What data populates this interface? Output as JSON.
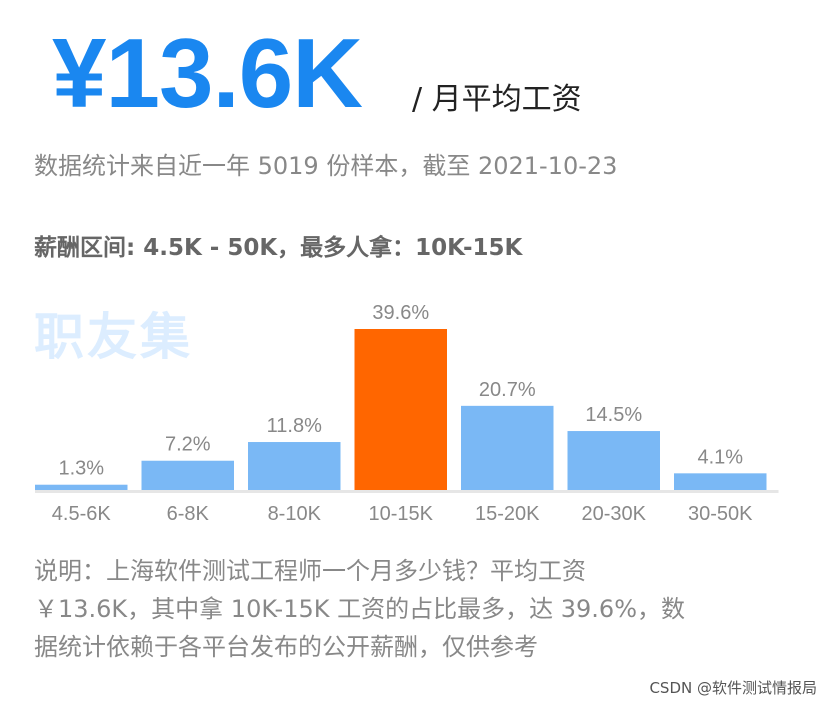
{
  "headline": {
    "average": "¥13.6K",
    "unit": "/ 月平均工资"
  },
  "stats_line": "数据统计来自近一年 5019 份样本，截至 2021-10-23",
  "range_line": "薪酬区间: 4.5K - 50K，最多人拿：10K-15K",
  "watermark": "职友集",
  "note": {
    "lines": [
      "说明：上海软件测试工程师一个月多少钱？平均工资",
      "￥13.6K，其中拿 10K-15K 工资的占比最多，达 39.6%，数",
      "据统计依赖于各平台发布的公开薪酬，仅供参考"
    ]
  },
  "credit": "CSDN @软件测试情报局",
  "colors": {
    "headline": "#1a87f0",
    "bar": "#7ab8f5",
    "highlight": "#ff6600",
    "watermark": "#8ec5ff",
    "baseline": "#e6e6e6",
    "label": "#888888"
  },
  "chart_data": {
    "type": "bar",
    "categories": [
      "4.5-6K",
      "6-8K",
      "8-10K",
      "10-15K",
      "15-20K",
      "20-30K",
      "30-50K"
    ],
    "values": [
      1.3,
      7.2,
      11.8,
      39.6,
      20.7,
      14.5,
      4.1
    ],
    "value_labels": [
      "1.3%",
      "7.2%",
      "11.8%",
      "39.6%",
      "20.7%",
      "14.5%",
      "4.1%"
    ],
    "highlight_category": "10-15K",
    "ylim": [
      0,
      39.6
    ],
    "grid": false,
    "legend": "none"
  }
}
